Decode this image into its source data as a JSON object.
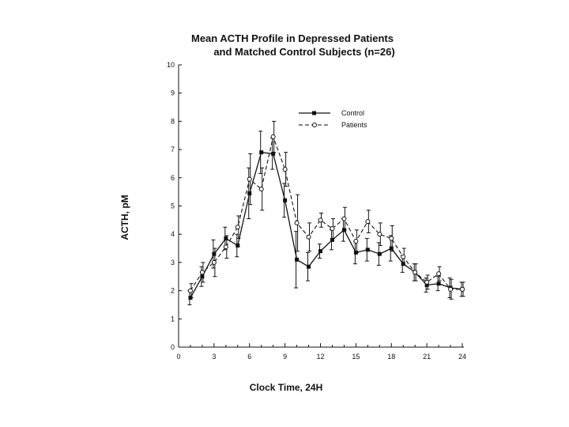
{
  "chart_data": {
    "type": "line",
    "title_line1": "Mean ACTH Profile in Depressed Patients",
    "title_line2": "and Matched Control Subjects (n=26)",
    "xlabel": "Clock Time, 24H",
    "ylabel": "ACTH, pM",
    "xlim": [
      0,
      24
    ],
    "ylim": [
      0,
      10
    ],
    "xticks": [
      0,
      3,
      6,
      9,
      12,
      15,
      18,
      21,
      24
    ],
    "yticks": [
      0,
      1,
      2,
      3,
      4,
      5,
      6,
      7,
      8,
      9,
      10
    ],
    "grid": false,
    "legend_position": "top-right",
    "x": [
      1,
      2,
      3,
      4,
      5,
      6,
      7,
      8,
      9,
      10,
      11,
      12,
      13,
      14,
      15,
      16,
      17,
      18,
      19,
      20,
      21,
      22,
      23,
      24
    ],
    "series": [
      {
        "name": "Control",
        "line": "solid",
        "marker": "filled-square",
        "values": [
          1.75,
          2.5,
          3.3,
          3.85,
          3.6,
          5.45,
          6.9,
          6.85,
          5.2,
          3.1,
          2.85,
          3.4,
          3.8,
          4.15,
          3.35,
          3.45,
          3.3,
          3.5,
          2.95,
          2.65,
          2.2,
          2.25,
          2.1,
          2.05
        ],
        "errors": [
          0.25,
          0.35,
          0.5,
          0.4,
          0.4,
          0.9,
          0.75,
          0.55,
          0.6,
          1.0,
          0.5,
          0.25,
          0.35,
          0.4,
          0.4,
          0.4,
          0.4,
          0.45,
          0.3,
          0.3,
          0.25,
          0.25,
          0.35,
          0.25
        ]
      },
      {
        "name": "Patients",
        "line": "dashed",
        "marker": "open-circle",
        "values": [
          2.0,
          2.65,
          3.0,
          3.55,
          4.25,
          5.95,
          5.6,
          7.45,
          6.3,
          4.4,
          3.9,
          4.5,
          4.2,
          4.55,
          3.75,
          4.45,
          4.0,
          3.85,
          3.2,
          2.65,
          2.3,
          2.6,
          2.05,
          2.05
        ]
      }
    ],
    "error_bars": true
  },
  "colors": {
    "ink": "#111111",
    "background": "#ffffff"
  }
}
